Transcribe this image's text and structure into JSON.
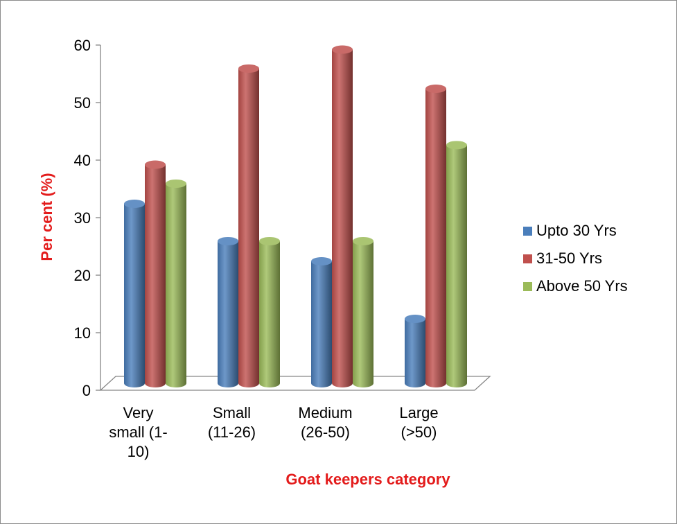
{
  "chart_data": {
    "type": "bar",
    "title": "",
    "xlabel": "Goat keepers category",
    "ylabel": "Per cent (%)",
    "ylim": [
      0,
      60
    ],
    "yticks": [
      0,
      10,
      20,
      30,
      40,
      50,
      60
    ],
    "grid": false,
    "legend_position": "right",
    "label_color": "#e31b1b",
    "categories": [
      [
        "Very",
        "small (1-",
        "10)"
      ],
      [
        "Small",
        "(11-26)"
      ],
      [
        "Medium",
        "(26-50)"
      ],
      [
        "Large",
        "(>50)"
      ]
    ],
    "series": [
      {
        "name": "Upto 30 Yrs",
        "color": "#4a7ebb",
        "values": [
          30,
          23.5,
          20,
          10
        ]
      },
      {
        "name": "31-50 Yrs",
        "color": "#c0504d",
        "values": [
          36.8,
          53.5,
          56.8,
          50
        ]
      },
      {
        "name": "Above 50 Yrs",
        "color": "#9bbb59",
        "values": [
          33.5,
          23.5,
          23.5,
          40.2
        ]
      }
    ]
  }
}
